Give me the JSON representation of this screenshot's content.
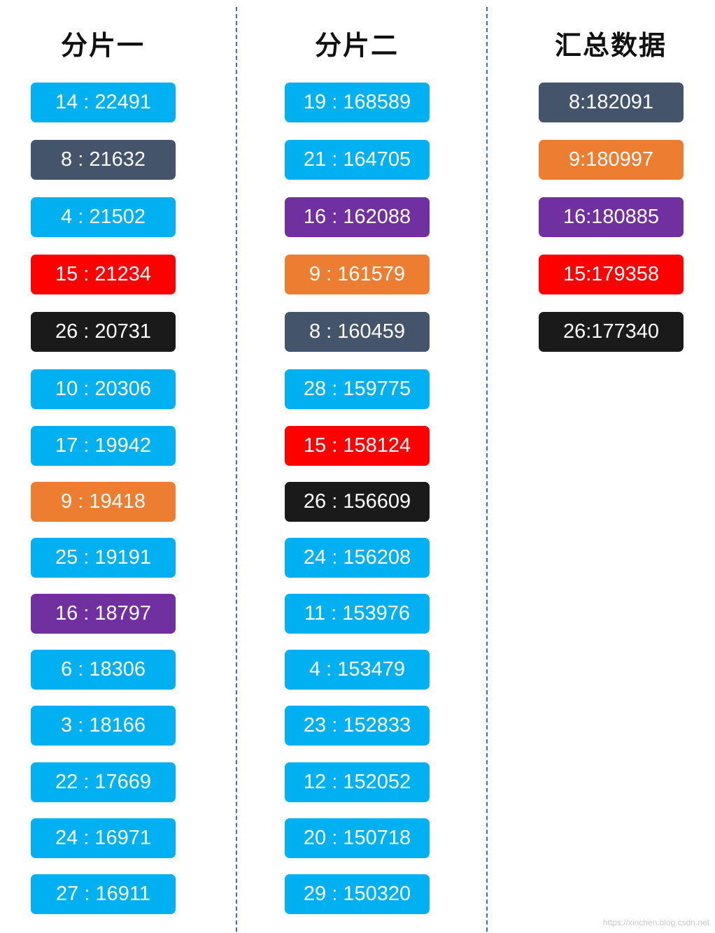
{
  "colors": {
    "blue": "#00b0f0",
    "slate": "#44546a",
    "purple": "#7030a0",
    "orange": "#ed7d31",
    "red": "#ff0000",
    "black": "#1a1a1a"
  },
  "columns": [
    {
      "id": "shard1",
      "title": "分片一",
      "items": [
        {
          "text": "14 : 22491",
          "color": "blue"
        },
        {
          "text": "8 : 21632",
          "color": "slate"
        },
        {
          "text": "4 : 21502",
          "color": "blue"
        },
        {
          "text": "15 : 21234",
          "color": "red"
        },
        {
          "text": "26 : 20731",
          "color": "black"
        },
        {
          "text": "10 : 20306",
          "color": "blue"
        },
        {
          "text": "17 : 19942",
          "color": "blue"
        },
        {
          "text": "9 : 19418",
          "color": "orange"
        },
        {
          "text": "25 : 19191",
          "color": "blue"
        },
        {
          "text": "16 : 18797",
          "color": "purple"
        },
        {
          "text": "6 : 18306",
          "color": "blue"
        },
        {
          "text": "3 : 18166",
          "color": "blue"
        },
        {
          "text": "22 : 17669",
          "color": "blue"
        },
        {
          "text": "24 : 16971",
          "color": "blue"
        },
        {
          "text": "27 : 16911",
          "color": "blue"
        }
      ]
    },
    {
      "id": "shard2",
      "title": "分片二",
      "items": [
        {
          "text": "19 : 168589",
          "color": "blue"
        },
        {
          "text": "21 : 164705",
          "color": "blue"
        },
        {
          "text": "16 : 162088",
          "color": "purple"
        },
        {
          "text": "9 : 161579",
          "color": "orange"
        },
        {
          "text": "8 : 160459",
          "color": "slate"
        },
        {
          "text": "28 : 159775",
          "color": "blue"
        },
        {
          "text": "15 : 158124",
          "color": "red"
        },
        {
          "text": "26 : 156609",
          "color": "black"
        },
        {
          "text": "24 : 156208",
          "color": "blue"
        },
        {
          "text": "11 : 153976",
          "color": "blue"
        },
        {
          "text": "4 : 153479",
          "color": "blue"
        },
        {
          "text": "23 : 152833",
          "color": "blue"
        },
        {
          "text": "12 : 152052",
          "color": "blue"
        },
        {
          "text": "20 : 150718",
          "color": "blue"
        },
        {
          "text": "29 : 150320",
          "color": "blue"
        }
      ]
    },
    {
      "id": "summary",
      "title": "汇总数据",
      "items": [
        {
          "text": "8:182091",
          "color": "slate"
        },
        {
          "text": "9:180997",
          "color": "orange"
        },
        {
          "text": "16:180885",
          "color": "purple"
        },
        {
          "text": "15:179358",
          "color": "red"
        },
        {
          "text": "26:177340",
          "color": "black"
        }
      ]
    }
  ],
  "watermark": "https://xinchen.blog.csdn.net"
}
